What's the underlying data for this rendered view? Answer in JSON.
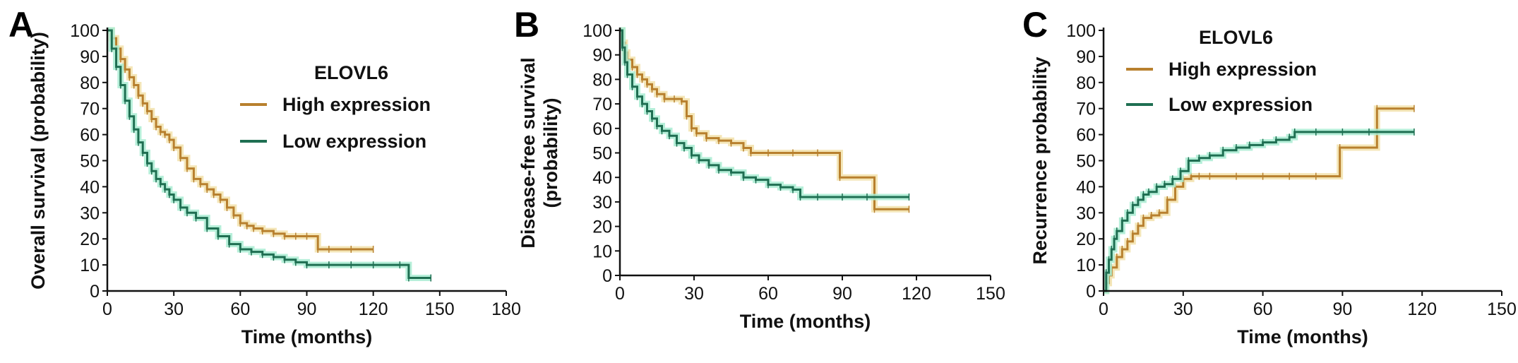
{
  "colors": {
    "high": "#b8802e",
    "low": "#1f6f52",
    "high_band": "#f2e2ac",
    "low_band": "#a9ecd2",
    "axis": "#111111"
  },
  "chart_data": [
    {
      "panel": "A",
      "type": "line",
      "step": true,
      "xlabel": "Time (months)",
      "ylabel_lines": [
        "Overall survival (probability)"
      ],
      "xlim": [
        0,
        180
      ],
      "ylim": [
        0,
        100
      ],
      "xticks": [
        0,
        30,
        60,
        90,
        120,
        150,
        180
      ],
      "yticks": [
        0,
        10,
        20,
        30,
        40,
        50,
        60,
        70,
        80,
        90,
        100
      ],
      "legend_title": "ELOVL6",
      "legend_position": "top-right",
      "series": [
        {
          "name": "High expression",
          "color_key": "high",
          "x": [
            0,
            2,
            4,
            6,
            8,
            10,
            12,
            14,
            16,
            18,
            20,
            22,
            24,
            26,
            28,
            30,
            33,
            36,
            39,
            42,
            45,
            48,
            51,
            54,
            57,
            60,
            63,
            66,
            70,
            75,
            80,
            85,
            90,
            95,
            100,
            110,
            120
          ],
          "y": [
            100,
            97,
            93,
            89,
            85,
            82,
            79,
            75,
            72,
            69,
            66,
            63,
            61,
            60,
            58,
            55,
            51,
            47,
            43,
            41,
            39,
            37,
            35,
            32,
            29,
            26,
            25,
            24,
            23,
            22,
            21,
            21,
            21,
            16,
            16,
            16,
            16
          ]
        },
        {
          "name": "Low expression",
          "color_key": "low",
          "x": [
            0,
            2,
            4,
            6,
            8,
            10,
            12,
            14,
            16,
            18,
            20,
            22,
            24,
            26,
            28,
            30,
            33,
            36,
            40,
            45,
            50,
            55,
            60,
            65,
            70,
            75,
            80,
            85,
            90,
            100,
            110,
            120,
            132,
            136,
            146
          ],
          "y": [
            100,
            93,
            86,
            79,
            73,
            67,
            62,
            57,
            53,
            49,
            46,
            43,
            41,
            39,
            37,
            35,
            32,
            30,
            28,
            24,
            21,
            18,
            16,
            15,
            14,
            13,
            12,
            11,
            10,
            10,
            10,
            10,
            10,
            5,
            5
          ]
        }
      ]
    },
    {
      "panel": "B",
      "type": "line",
      "step": true,
      "xlabel": "Time (months)",
      "ylabel_lines": [
        "Disease-free survival",
        "(probability)"
      ],
      "xlim": [
        0,
        150
      ],
      "ylim": [
        0,
        100
      ],
      "xticks": [
        0,
        30,
        60,
        90,
        120,
        150
      ],
      "yticks": [
        0,
        10,
        20,
        30,
        40,
        50,
        60,
        70,
        80,
        90,
        100
      ],
      "legend_title": "",
      "legend_position": "none",
      "series": [
        {
          "name": "High expression",
          "color_key": "high",
          "x": [
            0,
            1,
            2,
            3,
            5,
            7,
            9,
            11,
            13,
            15,
            18,
            22,
            25,
            27,
            29,
            31,
            35,
            40,
            45,
            50,
            53,
            60,
            70,
            80,
            89,
            103,
            117
          ],
          "y": [
            100,
            95,
            91,
            88,
            85,
            82,
            80,
            78,
            76,
            74,
            72,
            72,
            71,
            65,
            60,
            58,
            56,
            55,
            54,
            52,
            50,
            50,
            50,
            50,
            40,
            27,
            27
          ]
        },
        {
          "name": "Low expression",
          "color_key": "low",
          "x": [
            0,
            1,
            2,
            3,
            5,
            7,
            9,
            11,
            13,
            15,
            17,
            20,
            23,
            26,
            29,
            32,
            36,
            40,
            45,
            50,
            55,
            60,
            65,
            70,
            73,
            80,
            90,
            100,
            117
          ],
          "y": [
            100,
            93,
            87,
            82,
            77,
            73,
            70,
            67,
            64,
            61,
            59,
            57,
            54,
            52,
            49,
            47,
            45,
            43,
            42,
            40,
            39,
            37,
            36,
            35,
            32,
            32,
            32,
            32,
            32
          ]
        }
      ]
    },
    {
      "panel": "C",
      "type": "line",
      "step": true,
      "xlabel": "Time (months)",
      "ylabel_lines": [
        "Recurrence probability"
      ],
      "xlim": [
        0,
        150
      ],
      "ylim": [
        0,
        100
      ],
      "xticks": [
        0,
        30,
        60,
        90,
        120,
        150
      ],
      "yticks": [
        0,
        10,
        20,
        30,
        40,
        50,
        60,
        70,
        80,
        90,
        100
      ],
      "legend_title": "ELOVL6",
      "legend_position": "top-left",
      "series": [
        {
          "name": "High expression",
          "color_key": "high",
          "x": [
            0,
            1,
            2,
            3,
            5,
            7,
            9,
            11,
            13,
            15,
            18,
            21,
            24,
            27,
            30,
            33,
            36,
            40,
            50,
            60,
            70,
            80,
            89,
            103,
            117
          ],
          "y": [
            0,
            3,
            6,
            9,
            13,
            16,
            19,
            22,
            25,
            28,
            29,
            30,
            35,
            40,
            43,
            44,
            44,
            44,
            44,
            44,
            44,
            44,
            55,
            70,
            70
          ]
        },
        {
          "name": "Low expression",
          "color_key": "low",
          "x": [
            0,
            1,
            2,
            3,
            4,
            5,
            7,
            9,
            11,
            13,
            15,
            17,
            20,
            23,
            26,
            29,
            32,
            36,
            40,
            45,
            50,
            55,
            60,
            65,
            70,
            72,
            80,
            90,
            100,
            117
          ],
          "y": [
            0,
            7,
            12,
            16,
            20,
            23,
            27,
            30,
            33,
            35,
            37,
            38,
            40,
            41,
            43,
            46,
            50,
            51,
            52,
            54,
            55,
            56,
            57,
            58,
            59,
            61,
            61,
            61,
            61,
            61
          ]
        }
      ]
    }
  ]
}
